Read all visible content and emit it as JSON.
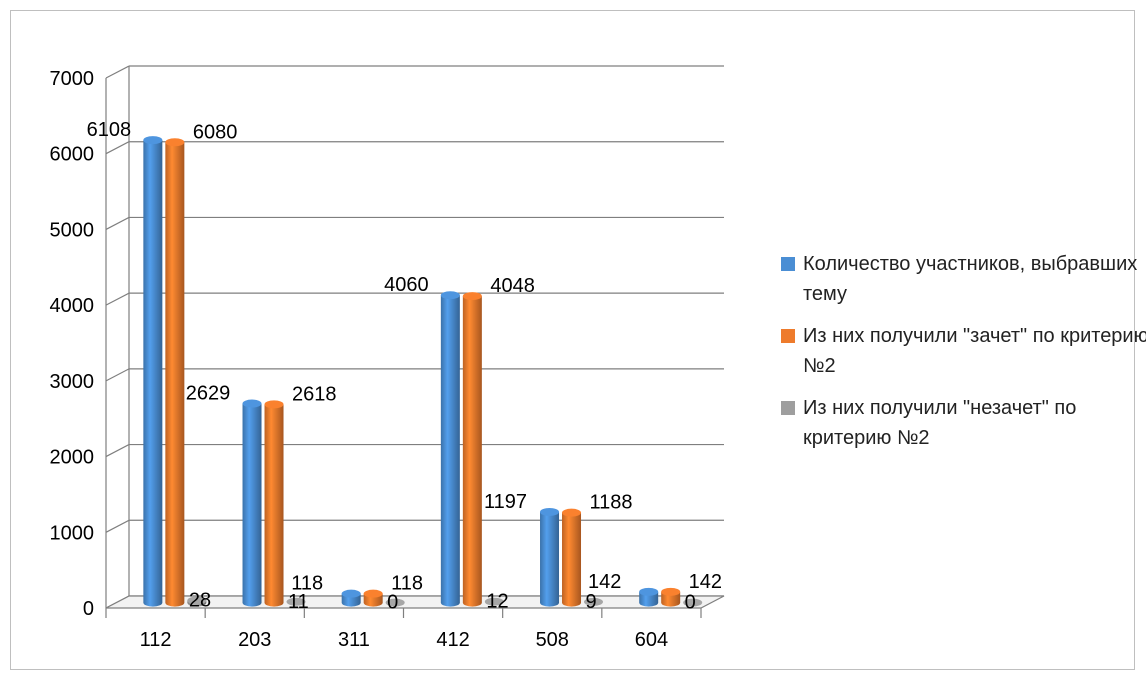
{
  "colors": {
    "series1": "#4a8ed4",
    "series2": "#ee7b2c",
    "series3": "#9e9e9e",
    "grid": "#7f7f7f",
    "text": "#000000"
  },
  "chart_data": {
    "type": "bar",
    "title": "",
    "xlabel": "",
    "ylabel": "",
    "ylim": [
      0,
      7000
    ],
    "yticks": [
      "0",
      "1000",
      "2000",
      "3000",
      "4000",
      "5000",
      "6000",
      "7000"
    ],
    "categories": [
      "112",
      "203",
      "311",
      "412",
      "508",
      "604"
    ],
    "grid": true,
    "legend_position": "right",
    "series": [
      {
        "name": "Количество участников, выбравших тему",
        "values": [
          6108,
          2629,
          118,
          4060,
          1197,
          142
        ],
        "labels": [
          "6108",
          "2629",
          "118",
          "4060",
          "1197",
          "142"
        ]
      },
      {
        "name": "Из них получили \"зачет\" по критерию №2",
        "values": [
          6080,
          2618,
          118,
          4048,
          1188,
          142
        ],
        "labels": [
          "6080",
          "2618",
          "118",
          "4048",
          "1188",
          "142"
        ]
      },
      {
        "name": "Из них получили \"незачет\" по критерию №2",
        "values": [
          28,
          11,
          0,
          12,
          9,
          0
        ],
        "labels": [
          "28",
          "11",
          "0",
          "12",
          "9",
          "0"
        ]
      }
    ]
  }
}
